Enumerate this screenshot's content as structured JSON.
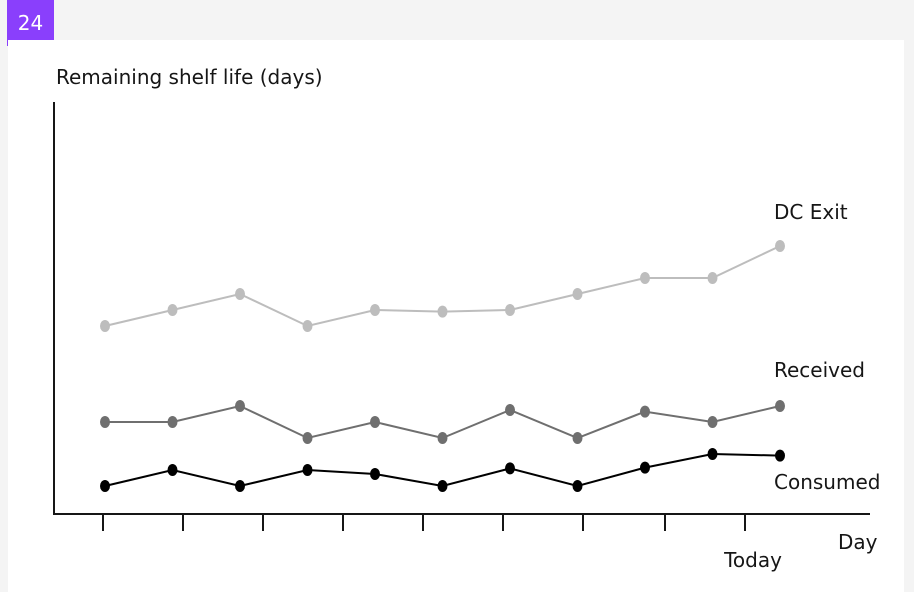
{
  "badge": {
    "number": "24"
  },
  "chart_data": {
    "type": "line",
    "ylabel": "Remaining shelf life (days)",
    "xlabel": "Day",
    "x": [
      1,
      2,
      3,
      4,
      5,
      6,
      7,
      8,
      9,
      10,
      11
    ],
    "x_tick_labels": [
      "",
      "",
      "",
      "",
      "",
      "",
      "",
      "",
      "",
      "Today",
      ""
    ],
    "ylim": [
      0,
      26
    ],
    "grid": false,
    "legend": "inline labels at right end of each line",
    "series": [
      {
        "name": "DC Exit",
        "color": "#bdbdbd",
        "values": [
          12,
          13,
          14,
          12,
          13,
          12.9,
          13,
          14,
          15,
          15,
          17
        ]
      },
      {
        "name": "Received",
        "color": "#6f6f6f",
        "values": [
          6,
          6,
          7,
          5,
          6,
          5,
          6.75,
          5,
          6.65,
          6,
          7
        ]
      },
      {
        "name": "Consumed",
        "color": "#000000",
        "values": [
          2,
          3,
          2,
          3,
          2.75,
          2,
          3.1,
          2,
          3.15,
          4,
          3.9
        ]
      }
    ]
  }
}
